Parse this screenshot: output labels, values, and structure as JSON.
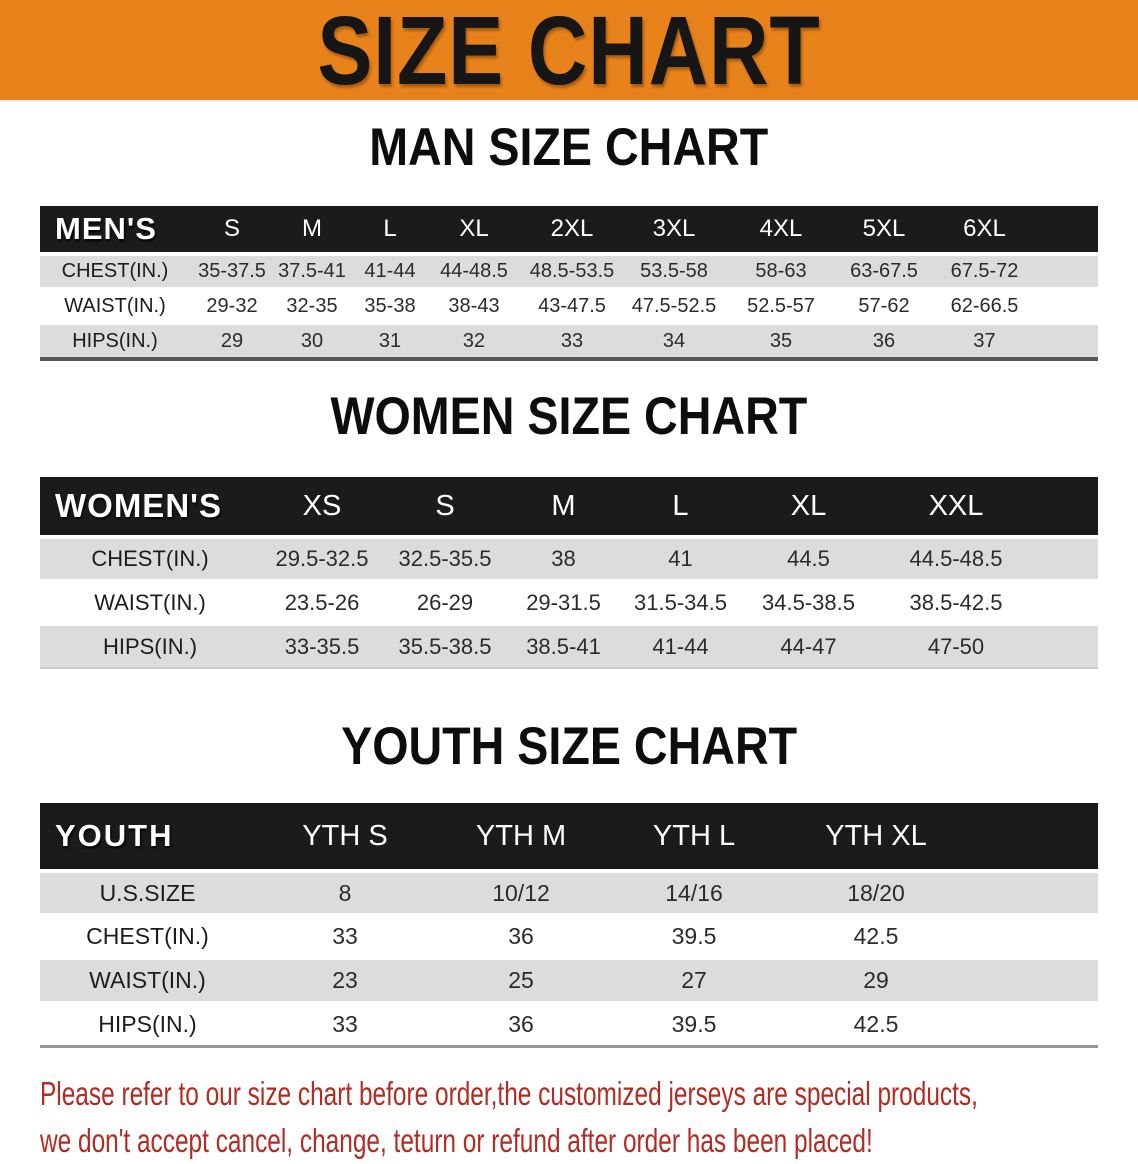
{
  "banner": {
    "title": "SIZE CHART"
  },
  "colors": {
    "banner_bg": "#E8831C",
    "table_header_bg": "#1B1B1B",
    "row_alt_bg": "#DBDCDD",
    "footer_text": "#B32B22"
  },
  "sections": [
    {
      "heading": "MAN SIZE CHART",
      "table": {
        "header_label": "MEN'S",
        "columns": [
          "S",
          "M",
          "L",
          "XL",
          "2XL",
          "3XL",
          "4XL",
          "5XL",
          "6XL"
        ],
        "rows": [
          {
            "label": "CHEST(IN.)",
            "values": [
              "35-37.5",
              "37.5-41",
              "41-44",
              "44-48.5",
              "48.5-53.5",
              "53.5-58",
              "58-63",
              "63-67.5",
              "67.5-72"
            ]
          },
          {
            "label": "WAIST(IN.)",
            "values": [
              "29-32",
              "32-35",
              "35-38",
              "38-43",
              "43-47.5",
              "47.5-52.5",
              "52.5-57",
              "57-62",
              "62-66.5"
            ]
          },
          {
            "label": "HIPS(IN.)",
            "values": [
              "29",
              "30",
              "31",
              "32",
              "33",
              "34",
              "35",
              "36",
              "37"
            ]
          }
        ]
      }
    },
    {
      "heading": "WOMEN SIZE CHART",
      "table": {
        "header_label": "WOMEN'S",
        "columns": [
          "XS",
          "S",
          "M",
          "L",
          "XL",
          "XXL"
        ],
        "rows": [
          {
            "label": "CHEST(IN.)",
            "values": [
              "29.5-32.5",
              "32.5-35.5",
              "38",
              "41",
              "44.5",
              "44.5-48.5"
            ]
          },
          {
            "label": "WAIST(IN.)",
            "values": [
              "23.5-26",
              "26-29",
              "29-31.5",
              "31.5-34.5",
              "34.5-38.5",
              "38.5-42.5"
            ]
          },
          {
            "label": "HIPS(IN.)",
            "values": [
              "33-35.5",
              "35.5-38.5",
              "38.5-41",
              "41-44",
              "44-47",
              "47-50"
            ]
          }
        ]
      }
    },
    {
      "heading": "YOUTH SIZE CHART",
      "table": {
        "header_label": "YOUTH",
        "columns": [
          "YTH S",
          "YTH M",
          "YTH L",
          "YTH XL"
        ],
        "rows": [
          {
            "label": "U.S.SIZE",
            "values": [
              "8",
              "10/12",
              "14/16",
              "18/20"
            ]
          },
          {
            "label": "CHEST(IN.)",
            "values": [
              "33",
              "36",
              "39.5",
              "42.5"
            ]
          },
          {
            "label": "WAIST(IN.)",
            "values": [
              "23",
              "25",
              "27",
              "29"
            ]
          },
          {
            "label": "HIPS(IN.)",
            "values": [
              "33",
              "36",
              "39.5",
              "42.5"
            ]
          }
        ]
      }
    }
  ],
  "footer": {
    "line1": "Please refer to our size chart before order,the customized jerseys are special products,",
    "line2": "we don't accept cancel, change, teturn or refund after order has been placed!"
  }
}
